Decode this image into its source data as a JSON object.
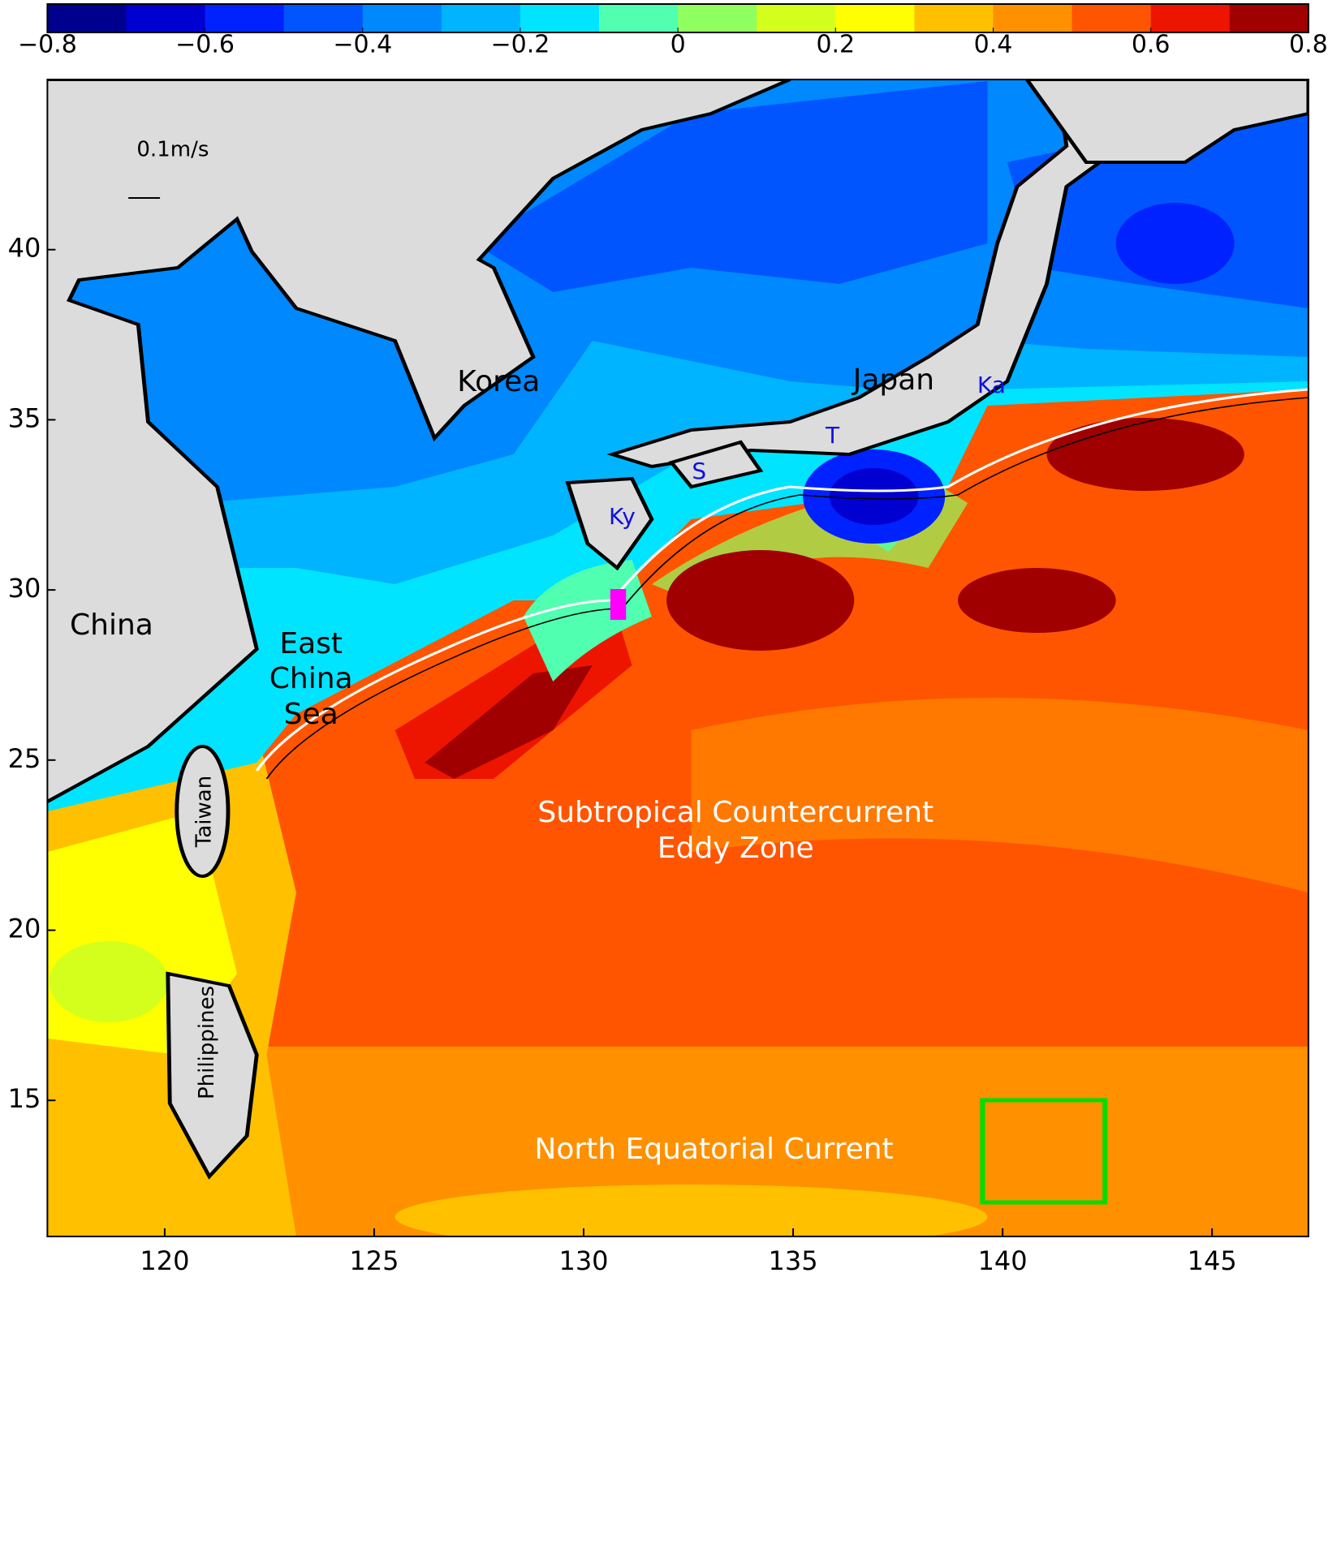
{
  "colorbar": {
    "colors": [
      "#00008f",
      "#0000d0",
      "#0022ff",
      "#0055ff",
      "#0088ff",
      "#00b4ff",
      "#00e4ff",
      "#50ffb0",
      "#90ff60",
      "#d4ff1c",
      "#ffff00",
      "#ffc000",
      "#ff9000",
      "#ff5500",
      "#ee1500",
      "#a00000"
    ],
    "lim": [
      -0.8,
      0.8
    ],
    "ticks": [
      {
        "value": -0.8,
        "label": "−0.8"
      },
      {
        "value": -0.6,
        "label": "−0.6"
      },
      {
        "value": -0.4,
        "label": "−0.4"
      },
      {
        "value": -0.2,
        "label": "−0.2"
      },
      0,
      0.2,
      0.4,
      0.6,
      0.8
    ]
  },
  "map": {
    "xlim": [
      117.2,
      147.3
    ],
    "ylim": [
      11,
      45
    ],
    "xticks": [
      120,
      125,
      130,
      135,
      140,
      145
    ],
    "yticks": [
      15,
      20,
      25,
      30,
      35,
      40
    ],
    "labels": {
      "china": "China",
      "korea": "Korea",
      "japan": "Japan",
      "ecs": [
        "East",
        "China",
        "Sea"
      ],
      "taiwan": "Taiwan",
      "philippines": "Philippines",
      "ky": "Ky",
      "s": "S",
      "t": "T",
      "ka": "Ka",
      "stcc": [
        "Subtropical Countercurrent",
        "Eddy Zone"
      ],
      "nec": "North Equatorial Current",
      "scale": "0.1m/s"
    }
  }
}
